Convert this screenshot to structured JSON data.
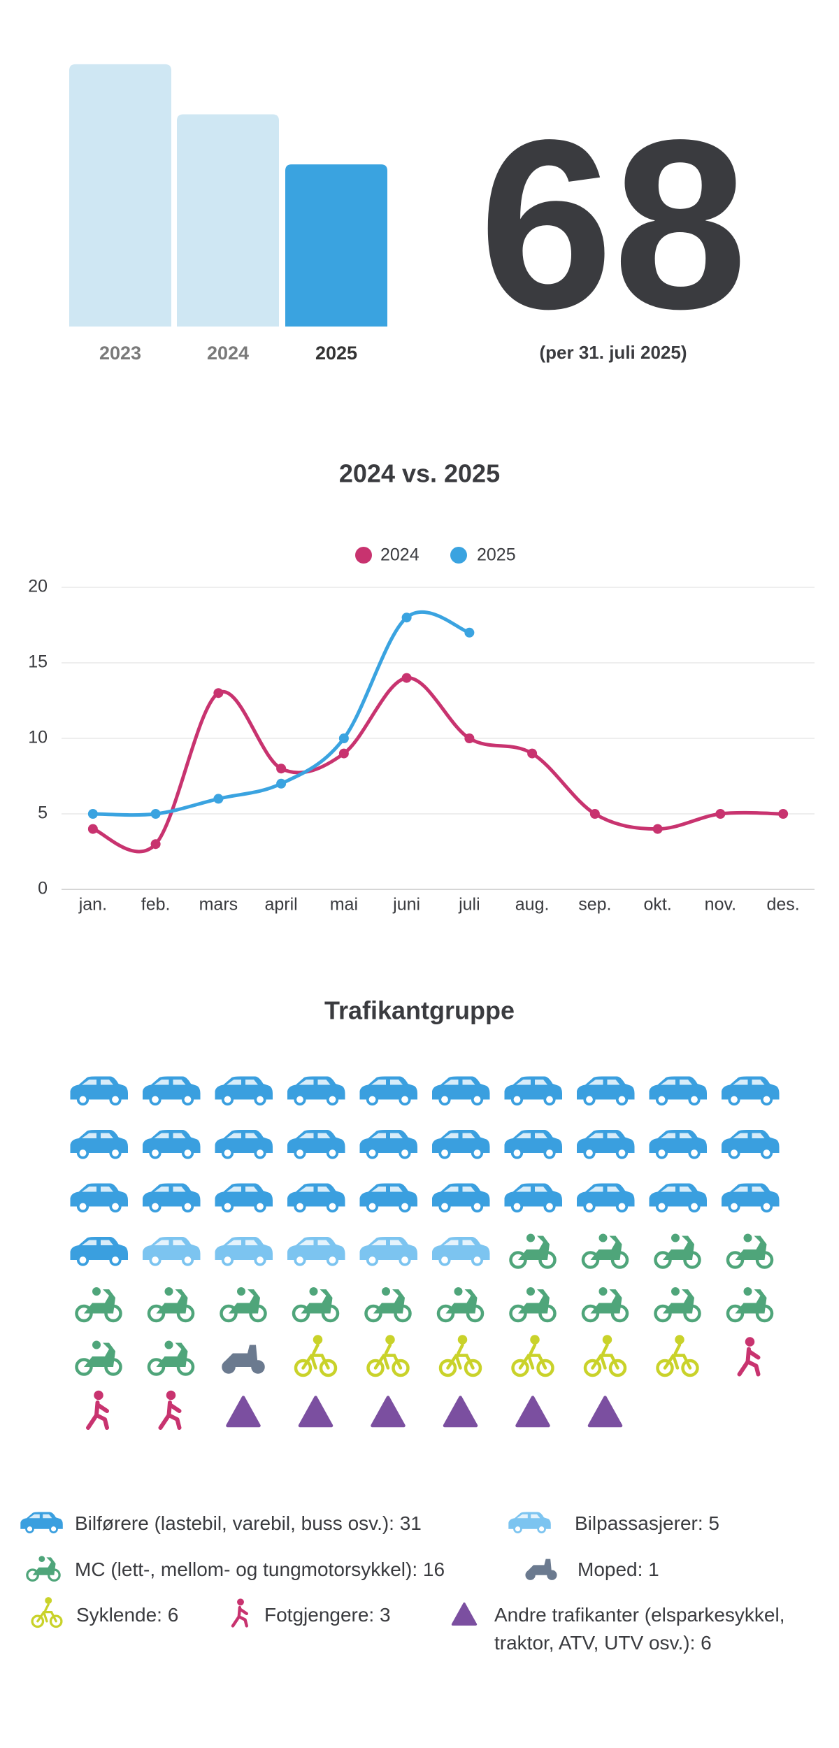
{
  "chart_data": [
    {
      "type": "bar",
      "categories": [
        "2023",
        "2024",
        "2025"
      ],
      "values": [
        110,
        89,
        68
      ],
      "colors": [
        "#cfe7f3",
        "#cfe7f3",
        "#3aa3e0"
      ],
      "headline": 68,
      "note": "(per 31. juli 2025)"
    },
    {
      "type": "line",
      "title": "2024 vs. 2025",
      "categories": [
        "jan.",
        "feb.",
        "mars",
        "april",
        "mai",
        "juni",
        "juli",
        "aug.",
        "sep.",
        "okt.",
        "nov.",
        "des."
      ],
      "series": [
        {
          "name": "2024",
          "color": "#c8336f",
          "values": [
            4,
            3,
            13,
            8,
            9,
            14,
            10,
            9,
            5,
            4,
            5,
            5
          ]
        },
        {
          "name": "2025",
          "color": "#3aa3e0",
          "values": [
            5,
            5,
            6,
            7,
            10,
            18,
            17,
            null,
            null,
            null,
            null,
            null
          ]
        }
      ],
      "ylim": [
        0,
        20
      ],
      "yticks": [
        0,
        5,
        10,
        15,
        20
      ],
      "grid": true,
      "legend": "top"
    },
    {
      "type": "waffle",
      "title": "Trafikantgruppe",
      "columns": 10,
      "series": [
        {
          "label": "Bilførere (lastebil, varebil, buss osv.): 31",
          "value": 31,
          "color": "#3a9fdf",
          "icon": "car"
        },
        {
          "label": "Bilpassasjerer: 5",
          "value": 5,
          "color": "#7cc4f0",
          "icon": "car"
        },
        {
          "label": "MC (lett-, mellom- og tungmotorsykkel): 16",
          "value": 16,
          "color": "#4fa57a",
          "icon": "mc"
        },
        {
          "label": "Moped: 1",
          "value": 1,
          "color": "#6b7a8f",
          "icon": "moped"
        },
        {
          "label": "Syklende: 6",
          "value": 6,
          "color": "#c9d22a",
          "icon": "bike"
        },
        {
          "label": "Fotgjengere: 3",
          "value": 3,
          "color": "#c8336f",
          "icon": "walk"
        },
        {
          "label": "Andre trafikanter (elsparkesykkel, traktor, ATV, UTV osv.): 6",
          "value": 6,
          "color": "#7b4fa0",
          "icon": "other"
        }
      ]
    }
  ]
}
